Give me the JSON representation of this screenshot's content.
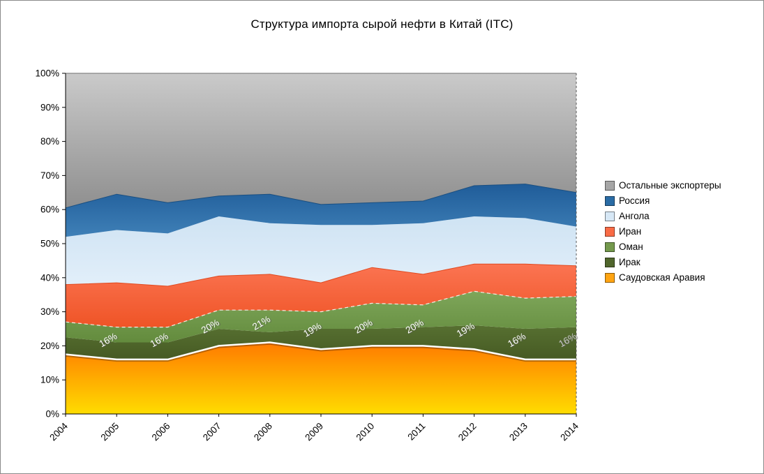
{
  "window": {
    "background": "#FFFFFF",
    "border_color": "#8A8A8A"
  },
  "chart_data": {
    "type": "area",
    "stacked": true,
    "percent_stacked": true,
    "title": "Структура импорта сырой нефти в Китай (ITC)",
    "x": [
      2004,
      2005,
      2006,
      2007,
      2008,
      2009,
      2010,
      2011,
      2012,
      2013,
      2014
    ],
    "x_tick_labels": [
      "2004",
      "2005",
      "2006",
      "2007",
      "2008",
      "2009",
      "2010",
      "2011",
      "2012",
      "2013",
      "2014"
    ],
    "y_axis": {
      "min": 0,
      "max": 100,
      "step": 10,
      "tick_labels": [
        "0%",
        "10%",
        "20%",
        "30%",
        "40%",
        "50%",
        "60%",
        "70%",
        "80%",
        "90%",
        "100%"
      ]
    },
    "grid": "off",
    "series": [
      {
        "id": "saudi-arabia",
        "name": "Саудовская Аравия",
        "values": [
          17.5,
          16,
          16,
          20,
          21,
          19,
          20,
          20,
          19,
          16,
          16
        ],
        "color_top": "#FF7A00",
        "color_bottom": "#FFDC00",
        "legend_color": "#FFA412",
        "top_line": {
          "color": "#FFFFFF",
          "width": 2.5,
          "shadow": true
        }
      },
      {
        "id": "iraq",
        "name": "Ирак",
        "values": [
          5,
          5,
          5,
          5,
          3,
          6,
          5,
          5.5,
          7,
          9,
          9.5
        ],
        "color_top": "#577031",
        "color_bottom": "#465A23",
        "legend_color": "#50662C"
      },
      {
        "id": "oman",
        "name": "Оман",
        "values": [
          4.5,
          4.5,
          4.5,
          5.5,
          6.5,
          5,
          7.5,
          6.5,
          10,
          9,
          9
        ],
        "color_top": "#7EA65A",
        "color_bottom": "#638B3D",
        "legend_color": "#74994D",
        "top_line": {
          "color": "#FFFFFF",
          "width": 1.2,
          "dash": "5 4",
          "opacity": 0.85
        }
      },
      {
        "id": "iran",
        "name": "Иран",
        "values": [
          11,
          13,
          12,
          10,
          10.5,
          8.5,
          10.5,
          9,
          8,
          10,
          9
        ],
        "color_top": "#FB7452",
        "color_bottom": "#EF5426",
        "legend_color": "#F96B45",
        "top_line": {
          "color": "#E04A20",
          "width": 1
        }
      },
      {
        "id": "angola",
        "name": "Ангола",
        "values": [
          14,
          15.5,
          15.5,
          17.5,
          15,
          17,
          12.5,
          15,
          14,
          13.5,
          11.5
        ],
        "color_top": "#CFE3F3",
        "color_bottom": "#E2EFFA",
        "legend_color": "#D7E8F6"
      },
      {
        "id": "russia",
        "name": "Россия",
        "values": [
          8.5,
          10.5,
          9,
          6,
          8.5,
          6,
          6.5,
          6.5,
          9,
          10,
          10
        ],
        "color_top": "#1F5C99",
        "color_bottom": "#3F80B7",
        "legend_color": "#2A6CA5",
        "top_line": {
          "color": "#1B4F80",
          "width": 1
        }
      },
      {
        "id": "others",
        "name": "Остальные экспортеры",
        "values": [
          39.5,
          35.5,
          38,
          36,
          35.5,
          38.5,
          38,
          37.5,
          33,
          32.5,
          35
        ],
        "color_top": "#CACACA",
        "color_bottom": "#8F8F8F",
        "legend_color": "#A6A6A6",
        "top_line": {
          "color": "#6E6E6E",
          "width": 1
        }
      }
    ],
    "legend": {
      "position": "right",
      "order_top_to_bottom": [
        "Остальные экспортеры",
        "Россия",
        "Ангола",
        "Иран",
        "Оман",
        "Ирак",
        "Саудовская Аравия"
      ]
    },
    "data_labels": {
      "series": "Саудовская Аравия",
      "labels": [
        {
          "year": 2005,
          "text": "16%",
          "color": "#FFFFFF"
        },
        {
          "year": 2006,
          "text": "16%",
          "color": "#FFFFFF"
        },
        {
          "year": 2007,
          "text": "20%",
          "color": "#FFFFFF"
        },
        {
          "year": 2008,
          "text": "21%",
          "color": "#FFFFFF"
        },
        {
          "year": 2009,
          "text": "19%",
          "color": "#FFFFFF"
        },
        {
          "year": 2010,
          "text": "20%",
          "color": "#FFFFFF"
        },
        {
          "year": 2011,
          "text": "20%",
          "color": "#FFFFFF"
        },
        {
          "year": 2012,
          "text": "19%",
          "color": "#FFFFFF"
        },
        {
          "year": 2013,
          "text": "16%",
          "color": "#FFFFFF"
        },
        {
          "year": 2014,
          "text": "16%",
          "color": "#C8C8C8"
        }
      ]
    }
  }
}
